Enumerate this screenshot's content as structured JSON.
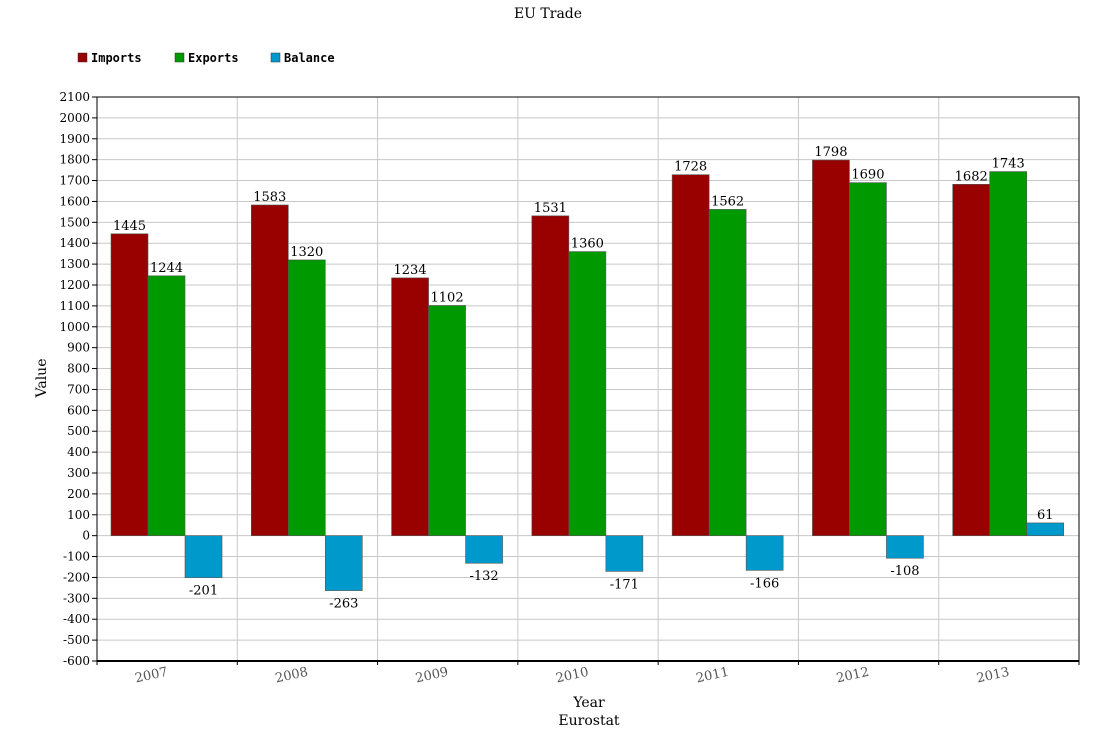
{
  "chart_data": {
    "type": "bar",
    "title": "EU Trade",
    "xlabel": "Year",
    "subtitle_bottom": "Eurostat",
    "ylabel": "Value",
    "ylim": [
      -600,
      2100
    ],
    "ytick_step": 100,
    "grid": true,
    "legend_position": "top-left",
    "categories": [
      "2007",
      "2008",
      "2009",
      "2010",
      "2011",
      "2012",
      "2013"
    ],
    "series": [
      {
        "name": "Imports",
        "color": "#990000",
        "values": [
          1445,
          1583,
          1234,
          1531,
          1728,
          1798,
          1682
        ]
      },
      {
        "name": "Exports",
        "color": "#009900",
        "values": [
          1244,
          1320,
          1102,
          1360,
          1562,
          1690,
          1743
        ]
      },
      {
        "name": "Balance",
        "color": "#0099cc",
        "values": [
          -201,
          -263,
          -132,
          -171,
          -166,
          -108,
          61
        ]
      }
    ]
  }
}
